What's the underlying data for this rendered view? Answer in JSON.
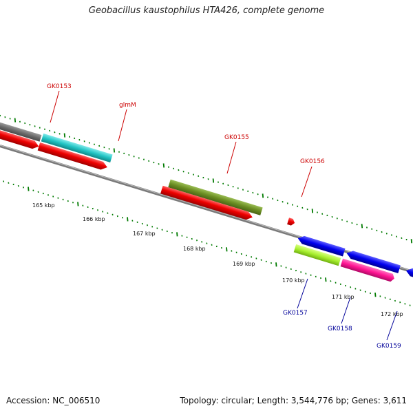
{
  "title": "Geobacillus kaustophilus HTA426, complete genome",
  "footer": {
    "accession": "Accession: NC_006510",
    "stats": "Topology: circular; Length: 3,544,776 bp; Genes: 3,611"
  },
  "colors": {
    "background": "#ffffff",
    "backbone": "#8c8c8c",
    "tick": "#007a00",
    "label_red": "#cc0000",
    "label_blue": "#000099"
  },
  "ruler": {
    "labels": [
      "165 kbp",
      "166 kbp",
      "167 kbp",
      "168 kbp",
      "169 kbp",
      "170 kbp",
      "171 kbp",
      "172 kbp"
    ]
  },
  "genes": [
    {
      "name": "GK0153",
      "color": "#707070",
      "label_color": "#cc0000"
    },
    {
      "name": "glmM",
      "color": "#33cccc",
      "label_color": "#cc0000"
    },
    {
      "name": "GK0155",
      "color": "#6b8e23",
      "label_color": "#cc0000"
    },
    {
      "name": "GK0156",
      "color": "#ff0000",
      "label_color": "#cc0000"
    },
    {
      "name": "GK0157",
      "color": "#adff2f",
      "label_color": "#000099"
    },
    {
      "name": "GK0158",
      "color": "#ff1493",
      "label_color": "#000099"
    },
    {
      "name": "GK0159",
      "color": "#0000ff",
      "label_color": "#000099"
    }
  ]
}
